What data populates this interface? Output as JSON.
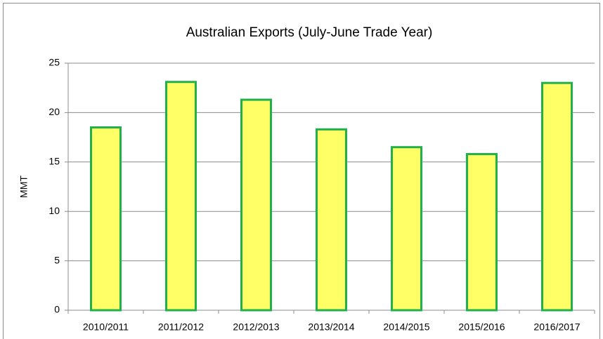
{
  "chart_data": {
    "type": "bar",
    "title": "Australian Exports (July-June Trade Year)",
    "y_label": "MMT",
    "categories": [
      "2010/2011",
      "2011/2012",
      "2012/2013",
      "2013/2014",
      "2014/2015",
      "2015/2016",
      "2016/2017"
    ],
    "values": [
      18.5,
      23.1,
      21.3,
      18.3,
      16.5,
      15.8,
      23.0
    ],
    "color": "#ffff66",
    "edge_color": "#22b04b",
    "ylim": [
      0,
      25
    ],
    "yticks": [
      0,
      5,
      10,
      15,
      20,
      25
    ],
    "grid": true
  }
}
